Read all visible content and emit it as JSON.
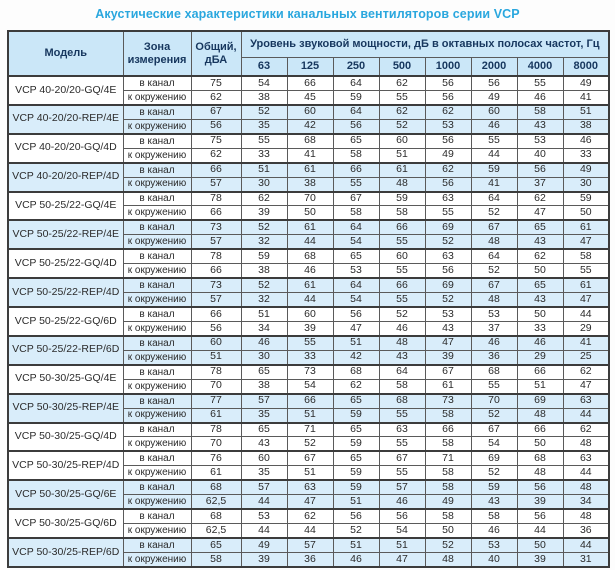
{
  "title": "Акустические характеристики канальных вентиляторов  серии VCP",
  "colors": {
    "title_text": "#2aa7de",
    "header_bg": "#cbe7f8",
    "header_text": "#17375e",
    "row_highlight_bg": "#d9edfa",
    "row_default_bg": "#ffffff",
    "border": "#5a5a5a",
    "border_dark": "#3c3c3c",
    "data_text": "#2b2b2b"
  },
  "table": {
    "col_model": "Модель",
    "col_zone": "Зона\nизмерения",
    "col_total": "Общий,\nдБА",
    "col_group": "Уровень звуковой мощности, дБ в октавных полосах частот, Гц",
    "frequencies": [
      "63",
      "125",
      "250",
      "500",
      "1000",
      "2000",
      "4000",
      "8000"
    ],
    "zone_labels": [
      "в канал",
      "к окружению"
    ],
    "models": [
      {
        "name": "VCP 40-20/20-GQ/4E",
        "highlighted": false,
        "rows": [
          {
            "zone": "в канал",
            "total": "75",
            "levels": [
              "54",
              "66",
              "64",
              "62",
              "56",
              "56",
              "55",
              "49"
            ]
          },
          {
            "zone": "к окружению",
            "total": "62",
            "levels": [
              "38",
              "45",
              "59",
              "55",
              "56",
              "49",
              "46",
              "41"
            ]
          }
        ]
      },
      {
        "name": "VCP 40-20/20-REP/4E",
        "highlighted": true,
        "rows": [
          {
            "zone": "в канал",
            "total": "67",
            "levels": [
              "52",
              "60",
              "64",
              "62",
              "62",
              "60",
              "58",
              "51"
            ]
          },
          {
            "zone": "к окружению",
            "total": "56",
            "levels": [
              "35",
              "42",
              "56",
              "52",
              "53",
              "46",
              "43",
              "38"
            ]
          }
        ]
      },
      {
        "name": "VCP 40-20/20-GQ/4D",
        "highlighted": false,
        "rows": [
          {
            "zone": "в канал",
            "total": "75",
            "levels": [
              "55",
              "68",
              "65",
              "60",
              "56",
              "55",
              "53",
              "46"
            ]
          },
          {
            "zone": "к окружению",
            "total": "62",
            "levels": [
              "33",
              "41",
              "58",
              "51",
              "49",
              "44",
              "40",
              "33"
            ]
          }
        ]
      },
      {
        "name": "VCP 40-20/20-REP/4D",
        "highlighted": true,
        "rows": [
          {
            "zone": "в канал",
            "total": "66",
            "levels": [
              "51",
              "61",
              "66",
              "61",
              "62",
              "59",
              "56",
              "49"
            ]
          },
          {
            "zone": "к окружению",
            "total": "57",
            "levels": [
              "30",
              "38",
              "55",
              "48",
              "56",
              "41",
              "37",
              "30"
            ]
          }
        ]
      },
      {
        "name": "VCP 50-25/22-GQ/4E",
        "highlighted": false,
        "rows": [
          {
            "zone": "в канал",
            "total": "78",
            "levels": [
              "62",
              "70",
              "67",
              "59",
              "63",
              "64",
              "62",
              "59"
            ]
          },
          {
            "zone": "к окружению",
            "total": "66",
            "levels": [
              "39",
              "50",
              "58",
              "58",
              "55",
              "52",
              "47",
              "50"
            ]
          }
        ]
      },
      {
        "name": "VCP 50-25/22-REP/4E",
        "highlighted": true,
        "rows": [
          {
            "zone": "в канал",
            "total": "73",
            "levels": [
              "52",
              "61",
              "64",
              "66",
              "69",
              "67",
              "65",
              "61"
            ]
          },
          {
            "zone": "к окружению",
            "total": "57",
            "levels": [
              "32",
              "44",
              "54",
              "55",
              "52",
              "48",
              "43",
              "47"
            ]
          }
        ]
      },
      {
        "name": "VCP 50-25/22-GQ/4D",
        "highlighted": false,
        "rows": [
          {
            "zone": "в канал",
            "total": "78",
            "levels": [
              "59",
              "68",
              "65",
              "60",
              "63",
              "64",
              "62",
              "58"
            ]
          },
          {
            "zone": "к окружению",
            "total": "66",
            "levels": [
              "38",
              "46",
              "53",
              "55",
              "56",
              "52",
              "50",
              "55"
            ]
          }
        ]
      },
      {
        "name": "VCP 50-25/22-REP/4D",
        "highlighted": true,
        "rows": [
          {
            "zone": "в канал",
            "total": "73",
            "levels": [
              "52",
              "61",
              "64",
              "66",
              "69",
              "67",
              "65",
              "61"
            ]
          },
          {
            "zone": "к окружению",
            "total": "57",
            "levels": [
              "32",
              "44",
              "54",
              "55",
              "52",
              "48",
              "43",
              "47"
            ]
          }
        ]
      },
      {
        "name": "VCP 50-25/22-GQ/6D",
        "highlighted": false,
        "rows": [
          {
            "zone": "в канал",
            "total": "66",
            "levels": [
              "51",
              "60",
              "56",
              "52",
              "53",
              "53",
              "50",
              "44"
            ]
          },
          {
            "zone": "к окружению",
            "total": "56",
            "levels": [
              "34",
              "39",
              "47",
              "46",
              "43",
              "37",
              "33",
              "29"
            ]
          }
        ]
      },
      {
        "name": "VCP 50-25/22-REP/6D",
        "highlighted": true,
        "rows": [
          {
            "zone": "в канал",
            "total": "60",
            "levels": [
              "46",
              "55",
              "51",
              "48",
              "47",
              "46",
              "46",
              "41"
            ]
          },
          {
            "zone": "к окружению",
            "total": "51",
            "levels": [
              "30",
              "33",
              "42",
              "43",
              "39",
              "36",
              "29",
              "25"
            ]
          }
        ]
      },
      {
        "name": "VCP 50-30/25-GQ/4E",
        "highlighted": false,
        "rows": [
          {
            "zone": "в канал",
            "total": "78",
            "levels": [
              "65",
              "73",
              "68",
              "64",
              "67",
              "68",
              "66",
              "62"
            ]
          },
          {
            "zone": "к окружению",
            "total": "70",
            "levels": [
              "38",
              "54",
              "62",
              "58",
              "61",
              "55",
              "51",
              "47"
            ]
          }
        ]
      },
      {
        "name": "VCP 50-30/25-REP/4E",
        "highlighted": true,
        "rows": [
          {
            "zone": "в канал",
            "total": "77",
            "levels": [
              "57",
              "66",
              "65",
              "68",
              "73",
              "70",
              "69",
              "63"
            ]
          },
          {
            "zone": "к окружению",
            "total": "61",
            "levels": [
              "35",
              "51",
              "59",
              "55",
              "58",
              "52",
              "48",
              "44"
            ]
          }
        ]
      },
      {
        "name": "VCP 50-30/25-GQ/4D",
        "highlighted": false,
        "rows": [
          {
            "zone": "в канал",
            "total": "78",
            "levels": [
              "65",
              "71",
              "65",
              "63",
              "66",
              "67",
              "66",
              "62"
            ]
          },
          {
            "zone": "к окружению",
            "total": "70",
            "levels": [
              "43",
              "52",
              "59",
              "55",
              "58",
              "54",
              "50",
              "48"
            ]
          }
        ]
      },
      {
        "name": "VCP 50-30/25-REP/4D",
        "highlighted": false,
        "rows": [
          {
            "zone": "в канал",
            "total": "76",
            "levels": [
              "60",
              "67",
              "65",
              "67",
              "71",
              "69",
              "68",
              "63"
            ]
          },
          {
            "zone": "к окружению",
            "total": "61",
            "levels": [
              "35",
              "51",
              "59",
              "55",
              "58",
              "52",
              "48",
              "44"
            ]
          }
        ]
      },
      {
        "name": "VCP 50-30/25-GQ/6E",
        "highlighted": true,
        "rows": [
          {
            "zone": "в канал",
            "total": "68",
            "levels": [
              "57",
              "63",
              "59",
              "57",
              "58",
              "59",
              "56",
              "48"
            ]
          },
          {
            "zone": "к окружению",
            "total": "62,5",
            "levels": [
              "44",
              "47",
              "51",
              "46",
              "49",
              "43",
              "39",
              "34"
            ]
          }
        ]
      },
      {
        "name": "VCP 50-30/25-GQ/6D",
        "highlighted": false,
        "rows": [
          {
            "zone": "в канал",
            "total": "68",
            "levels": [
              "53",
              "62",
              "56",
              "56",
              "58",
              "58",
              "56",
              "48"
            ]
          },
          {
            "zone": "к окружению",
            "total": "62,5",
            "levels": [
              "44",
              "44",
              "52",
              "54",
              "50",
              "46",
              "44",
              "36"
            ]
          }
        ]
      },
      {
        "name": "VCP 50-30/25-REP/6D",
        "highlighted": true,
        "rows": [
          {
            "zone": "в канал",
            "total": "65",
            "levels": [
              "49",
              "57",
              "51",
              "51",
              "52",
              "53",
              "50",
              "44"
            ]
          },
          {
            "zone": "к окружению",
            "total": "58",
            "levels": [
              "39",
              "36",
              "46",
              "47",
              "48",
              "40",
              "39",
              "31"
            ]
          }
        ]
      }
    ]
  }
}
